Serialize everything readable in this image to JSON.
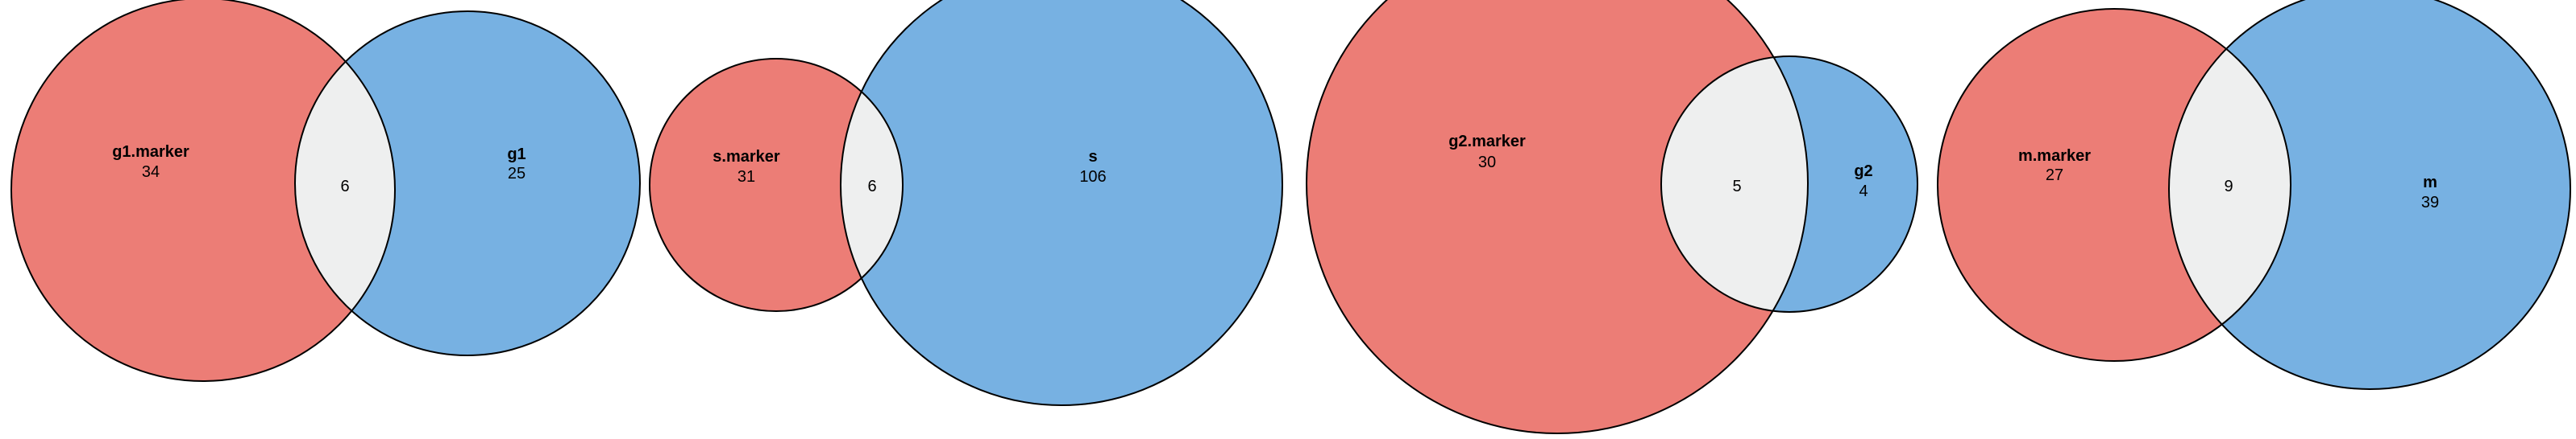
{
  "colors": {
    "left_set": "#ec7d76",
    "right_set": "#77b1e2",
    "overlap": "#eeefef",
    "outline": "#000000"
  },
  "diagrams": [
    {
      "left": {
        "name": "g1.marker",
        "count": "34"
      },
      "right": {
        "name": "g1",
        "count": "25"
      },
      "overlap": "6"
    },
    {
      "left": {
        "name": "s.marker",
        "count": "31"
      },
      "right": {
        "name": "s",
        "count": "106"
      },
      "overlap": "6"
    },
    {
      "left": {
        "name": "g2.marker",
        "count": "30"
      },
      "right": {
        "name": "g2",
        "count": "4"
      },
      "overlap": "5"
    },
    {
      "left": {
        "name": "m.marker",
        "count": "27"
      },
      "right": {
        "name": "m",
        "count": "39"
      },
      "overlap": "9"
    }
  ]
}
